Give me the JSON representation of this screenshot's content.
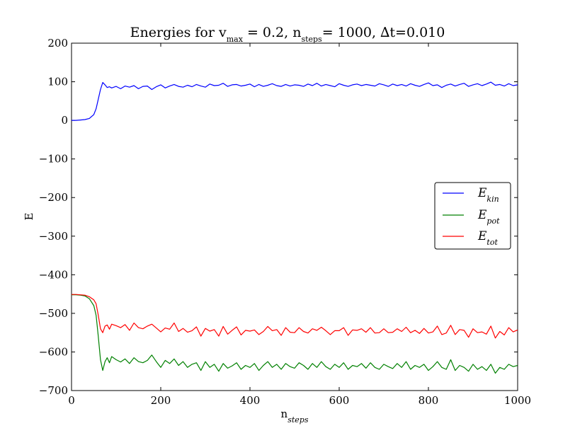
{
  "chart_data": {
    "type": "line",
    "title": {
      "prefix": "Energies for v",
      "vmax_sub": "max",
      "vmax_value": " = 0.2, n",
      "nsteps_sub": "steps",
      "nsteps_value": "= 1000, ",
      "dt_symbol": "∆",
      "dt_value": "t=0.010"
    },
    "xlabel": {
      "base": "n",
      "sub": "steps"
    },
    "ylabel": "E",
    "xlim": [
      0,
      1000
    ],
    "ylim": [
      -700,
      200
    ],
    "xticks": [
      0,
      200,
      400,
      600,
      800,
      1000
    ],
    "yticks": [
      200,
      100,
      0,
      -100,
      -200,
      -300,
      -400,
      -500,
      -600,
      -700
    ],
    "xtick_labels": [
      "0",
      "200",
      "400",
      "600",
      "800",
      "1000"
    ],
    "ytick_labels": [
      "200",
      "100",
      "0",
      "−100",
      "−200",
      "−300",
      "−400",
      "−500",
      "−600",
      "−700"
    ],
    "grid": false,
    "legend_position": "center-right",
    "series": [
      {
        "id": "ekin",
        "name": "E",
        "name_sub": "kin",
        "color": "#0000ff",
        "x": [
          0,
          10,
          20,
          30,
          40,
          50,
          55,
          60,
          65,
          70,
          75,
          80,
          85,
          90,
          100,
          110,
          120,
          130,
          140,
          150,
          160,
          170,
          180,
          190,
          200,
          210,
          220,
          230,
          240,
          250,
          260,
          270,
          280,
          290,
          300,
          310,
          320,
          330,
          340,
          350,
          360,
          370,
          380,
          390,
          400,
          410,
          420,
          430,
          440,
          450,
          460,
          470,
          480,
          490,
          500,
          510,
          520,
          530,
          540,
          550,
          560,
          570,
          580,
          590,
          600,
          610,
          620,
          630,
          640,
          650,
          660,
          670,
          680,
          690,
          700,
          710,
          720,
          730,
          740,
          750,
          760,
          770,
          780,
          790,
          800,
          810,
          820,
          830,
          840,
          850,
          860,
          870,
          880,
          890,
          900,
          910,
          920,
          930,
          940,
          950,
          960,
          970,
          980,
          990,
          1000
        ],
        "values": [
          0,
          0,
          1,
          2,
          5,
          15,
          30,
          55,
          80,
          98,
          92,
          85,
          87,
          84,
          88,
          82,
          89,
          86,
          90,
          82,
          88,
          89,
          80,
          87,
          92,
          84,
          89,
          93,
          88,
          86,
          91,
          87,
          93,
          89,
          86,
          94,
          90,
          91,
          96,
          88,
          92,
          93,
          89,
          91,
          94,
          87,
          93,
          88,
          91,
          95,
          90,
          88,
          93,
          89,
          92,
          91,
          88,
          94,
          90,
          96,
          89,
          93,
          90,
          87,
          95,
          91,
          88,
          92,
          94,
          90,
          93,
          91,
          89,
          95,
          92,
          88,
          94,
          90,
          93,
          89,
          95,
          91,
          88,
          93,
          97,
          90,
          92,
          85,
          91,
          94,
          89,
          93,
          96,
          88,
          92,
          95,
          90,
          94,
          99,
          91,
          93,
          89,
          95,
          90,
          92
        ]
      },
      {
        "id": "epot",
        "name": "E",
        "name_sub": "pot",
        "color": "#008000",
        "x": [
          0,
          10,
          20,
          30,
          40,
          50,
          55,
          60,
          65,
          70,
          75,
          80,
          85,
          90,
          100,
          110,
          120,
          130,
          140,
          150,
          160,
          170,
          180,
          190,
          200,
          210,
          220,
          230,
          240,
          250,
          260,
          270,
          280,
          290,
          300,
          310,
          320,
          330,
          340,
          350,
          360,
          370,
          380,
          390,
          400,
          410,
          420,
          430,
          440,
          450,
          460,
          470,
          480,
          490,
          500,
          510,
          520,
          530,
          540,
          550,
          560,
          570,
          580,
          590,
          600,
          610,
          620,
          630,
          640,
          650,
          660,
          670,
          680,
          690,
          700,
          710,
          720,
          730,
          740,
          750,
          760,
          770,
          780,
          790,
          800,
          810,
          820,
          830,
          840,
          850,
          860,
          870,
          880,
          890,
          900,
          910,
          920,
          930,
          940,
          950,
          960,
          970,
          980,
          990,
          1000
        ],
        "values": [
          -452,
          -452,
          -453,
          -455,
          -462,
          -480,
          -505,
          -560,
          -620,
          -648,
          -625,
          -615,
          -628,
          -612,
          -620,
          -626,
          -618,
          -630,
          -615,
          -625,
          -628,
          -622,
          -608,
          -625,
          -640,
          -622,
          -630,
          -618,
          -635,
          -625,
          -640,
          -632,
          -628,
          -648,
          -625,
          -640,
          -632,
          -650,
          -630,
          -642,
          -636,
          -628,
          -645,
          -635,
          -640,
          -630,
          -648,
          -635,
          -625,
          -640,
          -632,
          -645,
          -630,
          -638,
          -642,
          -628,
          -635,
          -645,
          -630,
          -640,
          -625,
          -638,
          -645,
          -632,
          -640,
          -628,
          -645,
          -635,
          -638,
          -630,
          -642,
          -628,
          -640,
          -645,
          -632,
          -638,
          -643,
          -630,
          -640,
          -625,
          -645,
          -635,
          -640,
          -632,
          -648,
          -638,
          -625,
          -640,
          -645,
          -620,
          -648,
          -635,
          -640,
          -650,
          -632,
          -645,
          -638,
          -648,
          -632,
          -655,
          -640,
          -645,
          -632,
          -638,
          -635
        ]
      },
      {
        "id": "etot",
        "name": "E",
        "name_sub": "tot",
        "color": "#ff0000",
        "x": [
          0,
          10,
          20,
          30,
          40,
          50,
          55,
          60,
          65,
          70,
          75,
          80,
          85,
          90,
          100,
          110,
          120,
          130,
          140,
          150,
          160,
          170,
          180,
          190,
          200,
          210,
          220,
          230,
          240,
          250,
          260,
          270,
          280,
          290,
          300,
          310,
          320,
          330,
          340,
          350,
          360,
          370,
          380,
          390,
          400,
          410,
          420,
          430,
          440,
          450,
          460,
          470,
          480,
          490,
          500,
          510,
          520,
          530,
          540,
          550,
          560,
          570,
          580,
          590,
          600,
          610,
          620,
          630,
          640,
          650,
          660,
          670,
          680,
          690,
          700,
          710,
          720,
          730,
          740,
          750,
          760,
          770,
          780,
          790,
          800,
          810,
          820,
          830,
          840,
          850,
          860,
          870,
          880,
          890,
          900,
          910,
          920,
          930,
          940,
          950,
          960,
          970,
          980,
          990,
          1000
        ],
        "values": [
          -451,
          -451,
          -452,
          -453,
          -457,
          -465,
          -475,
          -505,
          -540,
          -550,
          -533,
          -530,
          -541,
          -528,
          -532,
          -537,
          -529,
          -544,
          -525,
          -537,
          -540,
          -533,
          -528,
          -538,
          -548,
          -538,
          -541,
          -525,
          -547,
          -539,
          -549,
          -545,
          -535,
          -559,
          -539,
          -546,
          -542,
          -559,
          -534,
          -554,
          -544,
          -535,
          -556,
          -544,
          -546,
          -543,
          -555,
          -547,
          -534,
          -545,
          -542,
          -557,
          -537,
          -549,
          -550,
          -537,
          -547,
          -551,
          -540,
          -544,
          -536,
          -545,
          -555,
          -545,
          -545,
          -537,
          -557,
          -543,
          -544,
          -540,
          -549,
          -537,
          -551,
          -550,
          -540,
          -550,
          -549,
          -540,
          -547,
          -536,
          -550,
          -544,
          -552,
          -539,
          -551,
          -548,
          -533,
          -555,
          -551,
          -531,
          -555,
          -542,
          -544,
          -562,
          -540,
          -550,
          -548,
          -554,
          -533,
          -564,
          -547,
          -556,
          -537,
          -548,
          -543
        ]
      }
    ]
  }
}
